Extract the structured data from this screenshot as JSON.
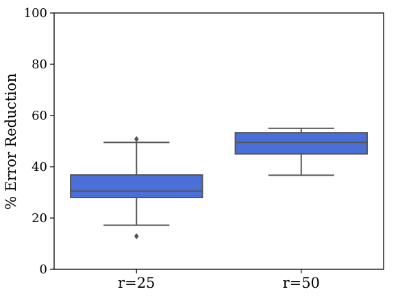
{
  "chart_data": {
    "type": "boxplot",
    "title": "",
    "xlabel": "",
    "ylabel": "% Error Reduction",
    "ylim": [
      0,
      100
    ],
    "yticks": [
      0,
      20,
      40,
      60,
      80,
      100
    ],
    "grid": false,
    "box_color": "#4a6fd6",
    "line_color": "#555555",
    "categories": [
      "r=25",
      "r=50"
    ],
    "boxes": [
      {
        "category": "r=25",
        "whisker_low": 17.2,
        "q1": 28.0,
        "median": 30.5,
        "q3": 36.8,
        "whisker_high": 49.5,
        "outliers": [
          50.8,
          12.9
        ]
      },
      {
        "category": "r=50",
        "whisker_low": 36.7,
        "q1": 45.0,
        "median": 49.5,
        "q3": 53.3,
        "whisker_high": 55.0,
        "outliers": []
      }
    ]
  }
}
